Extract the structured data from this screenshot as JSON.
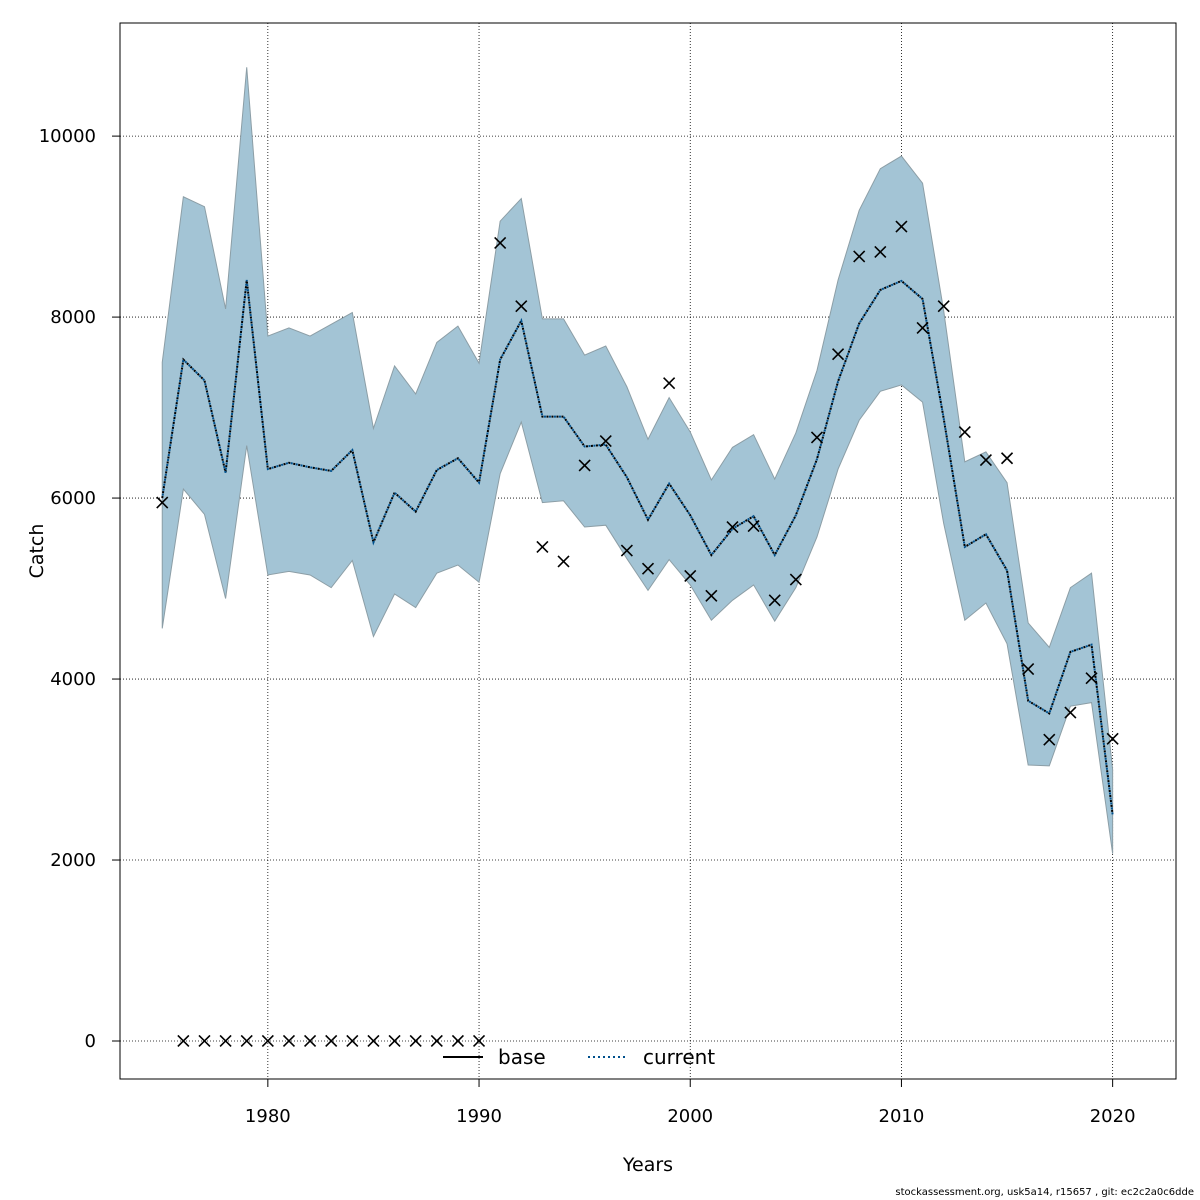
{
  "chart_data": {
    "type": "line",
    "xlabel": "Years",
    "ylabel": "Catch",
    "xlim": [
      1973,
      2023
    ],
    "ylim": [
      -420,
      11250
    ],
    "x_ticks": [
      1980,
      1990,
      2000,
      2010,
      2020
    ],
    "y_ticks": [
      0,
      2000,
      4000,
      6000,
      8000,
      10000
    ],
    "grid": true,
    "legend_position": "bottom-center",
    "legend": [
      {
        "label": "base",
        "style": "solid",
        "color": "#000000"
      },
      {
        "label": "current",
        "style": "dotted",
        "color": "#00508C"
      }
    ],
    "colors": {
      "band_fill": "#A3C4D5",
      "band_stroke": "#8C9EA6",
      "observed_marker": "#000000"
    },
    "x": [
      1975,
      1976,
      1977,
      1978,
      1979,
      1980,
      1981,
      1982,
      1983,
      1984,
      1985,
      1986,
      1987,
      1988,
      1989,
      1990,
      1991,
      1992,
      1993,
      1994,
      1995,
      1996,
      1997,
      1998,
      1999,
      2000,
      2001,
      2002,
      2003,
      2004,
      2005,
      2006,
      2007,
      2008,
      2009,
      2010,
      2011,
      2012,
      2013,
      2014,
      2015,
      2016,
      2017,
      2018,
      2019,
      2020
    ],
    "series": [
      {
        "name": "current",
        "style": "dotted",
        "values": [
          6000,
          7530,
          7300,
          6280,
          8410,
          6320,
          6390,
          6340,
          6300,
          6530,
          5510,
          6060,
          5850,
          6310,
          6440,
          6170,
          7530,
          7960,
          6900,
          6900,
          6570,
          6590,
          6230,
          5760,
          6160,
          5810,
          5370,
          5660,
          5800,
          5370,
          5810,
          6430,
          7290,
          7930,
          8300,
          8400,
          8200,
          6880,
          5460,
          5600,
          5200,
          3760,
          3620,
          4300,
          4380,
          2500
        ]
      },
      {
        "name": "band_lower",
        "values": [
          4560,
          6100,
          5820,
          4890,
          6580,
          5150,
          5190,
          5150,
          5010,
          5310,
          4470,
          4940,
          4790,
          5170,
          5260,
          5070,
          6270,
          6840,
          5950,
          5970,
          5680,
          5700,
          5330,
          4980,
          5320,
          5040,
          4650,
          4870,
          5040,
          4640,
          5010,
          5570,
          6320,
          6860,
          7180,
          7250,
          7060,
          5720,
          4650,
          4840,
          4390,
          3050,
          3040,
          3700,
          3740,
          2070
        ]
      },
      {
        "name": "band_upper",
        "values": [
          7500,
          9330,
          9220,
          8090,
          10760,
          7790,
          7880,
          7790,
          7920,
          8050,
          6770,
          7460,
          7150,
          7720,
          7900,
          7490,
          9060,
          9310,
          7980,
          7980,
          7580,
          7680,
          7230,
          6650,
          7110,
          6730,
          6200,
          6560,
          6700,
          6210,
          6720,
          7410,
          8410,
          9180,
          9640,
          9780,
          9480,
          8070,
          6400,
          6510,
          6170,
          4620,
          4350,
          5010,
          5170,
          3000
        ]
      },
      {
        "name": "observed",
        "marker": "x",
        "values": [
          5950,
          0,
          0,
          0,
          0,
          0,
          0,
          0,
          0,
          0,
          0,
          0,
          0,
          0,
          0,
          0,
          8820,
          8120,
          5460,
          5300,
          6360,
          6630,
          5420,
          5220,
          7270,
          5140,
          4920,
          5680,
          5690,
          4870,
          5100,
          6670,
          7590,
          8670,
          8720,
          9000,
          7880,
          8120,
          6730,
          6420,
          6440,
          4110,
          3330,
          3630,
          4010,
          3340
        ]
      }
    ]
  },
  "footer": "stockassessment.org, usk5a14, r15657 , git: ec2c2a0c6dde"
}
